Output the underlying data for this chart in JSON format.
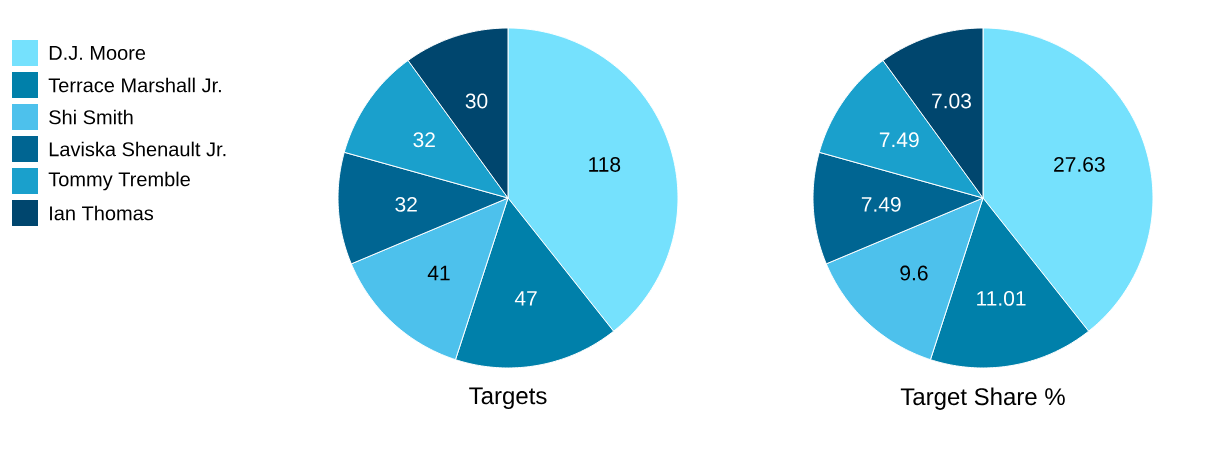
{
  "chart_data": [
    {
      "type": "pie",
      "title": "Targets",
      "categories": [
        "D.J. Moore",
        "Terrace Marshall Jr.",
        "Shi Smith",
        "Laviska Shenault Jr.",
        "Tommy Tremble",
        "Ian Thomas"
      ],
      "values": [
        118,
        47,
        41,
        32,
        32,
        30
      ],
      "colors": [
        "#75e1fd",
        "#0080aa",
        "#4dc1ec",
        "#006592",
        "#1aa0cc",
        "#00466e"
      ],
      "data_labels": true,
      "legend": "left"
    },
    {
      "type": "pie",
      "title": "Target Share %",
      "categories": [
        null,
        null,
        null,
        null,
        null,
        null
      ],
      "values": [
        27.63,
        11.01,
        9.6,
        7.49,
        7.49,
        7.03
      ],
      "colors": [
        "#75e1fd",
        "#0080aa",
        "#4dc1ec",
        "#006592",
        "#1aa0cc",
        "#00466e"
      ],
      "data_labels": true
    }
  ]
}
